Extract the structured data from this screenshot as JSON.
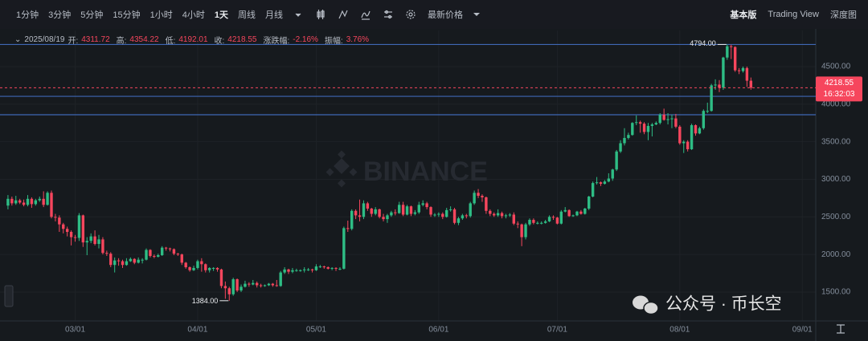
{
  "toolbar": {
    "intervals": [
      "1分钟",
      "3分钟",
      "5分钟",
      "15分钟",
      "1小时",
      "4小时",
      "1天",
      "周线",
      "月线"
    ],
    "active_interval": 6,
    "price_type": "最新价格",
    "views": [
      "基本版",
      "Trading View",
      "深度图"
    ]
  },
  "info": {
    "date": "2025/08/19",
    "labels": [
      "开:",
      "高:",
      "低:",
      "收:",
      "涨跌幅:",
      "振幅:"
    ],
    "change": "-2.16%",
    "amplitude": "3.76%"
  },
  "price_tag": {
    "countdown": "16:32:03"
  },
  "watermark": "BINANCE",
  "overlay_text": "公众号 · 币长空",
  "chart_data": {
    "type": "candlestick",
    "up_color": "#2ebd85",
    "down_color": "#f6465d",
    "grid": true,
    "xlim": [
      "02/11",
      "09/04"
    ],
    "xticks": [
      "03/01",
      "04/01",
      "05/01",
      "06/01",
      "07/01",
      "08/01",
      "09/01"
    ],
    "ylim": [
      1115,
      4980
    ],
    "yticks": [
      {
        "value": 1500,
        "label": "1500.00"
      },
      {
        "value": 2000,
        "label": "2000.00"
      },
      {
        "value": 2500,
        "label": "2500.00"
      },
      {
        "value": 3000,
        "label": "3000.00"
      },
      {
        "value": 3500,
        "label": "3500.00"
      },
      {
        "value": 4000,
        "label": "4000.00"
      },
      {
        "value": 4500,
        "label": "4500.00"
      }
    ],
    "reference_lines": [
      4794,
      4104,
      3859
    ],
    "reference_color": "#3f67b5",
    "high_marker": {
      "value": 4794,
      "label": "4794.00"
    },
    "low_marker": {
      "value": 1384,
      "label": "1384.00"
    },
    "categories": [
      "02/12",
      "02/13",
      "02/14",
      "02/15",
      "02/16",
      "02/17",
      "02/18",
      "02/19",
      "02/20",
      "02/21",
      "02/22",
      "02/23",
      "02/24",
      "02/25",
      "02/26",
      "02/27",
      "02/28",
      "03/01",
      "03/02",
      "03/03",
      "03/04",
      "03/05",
      "03/06",
      "03/07",
      "03/08",
      "03/09",
      "03/10",
      "03/11",
      "03/12",
      "03/13",
      "03/14",
      "03/15",
      "03/16",
      "03/17",
      "03/18",
      "03/19",
      "03/20",
      "03/21",
      "03/22",
      "03/23",
      "03/24",
      "03/25",
      "03/26",
      "03/27",
      "03/28",
      "03/29",
      "03/30",
      "03/31",
      "04/01",
      "04/02",
      "04/03",
      "04/04",
      "04/05",
      "04/06",
      "04/07",
      "04/08",
      "04/09",
      "04/10",
      "04/11",
      "04/12",
      "04/13",
      "04/14",
      "04/15",
      "04/16",
      "04/17",
      "04/18",
      "04/19",
      "04/20",
      "04/21",
      "04/22",
      "04/23",
      "04/24",
      "04/25",
      "04/26",
      "04/27",
      "04/28",
      "04/29",
      "04/30",
      "05/01",
      "05/02",
      "05/03",
      "05/04",
      "05/05",
      "05/06",
      "05/07",
      "05/08",
      "05/09",
      "05/10",
      "05/11",
      "05/12",
      "05/13",
      "05/14",
      "05/15",
      "05/16",
      "05/17",
      "05/18",
      "05/19",
      "05/20",
      "05/21",
      "05/22",
      "05/23",
      "05/24",
      "05/25",
      "05/26",
      "05/27",
      "05/28",
      "05/29",
      "05/30",
      "05/31",
      "06/01",
      "06/02",
      "06/03",
      "06/04",
      "06/05",
      "06/06",
      "06/07",
      "06/08",
      "06/09",
      "06/10",
      "06/11",
      "06/12",
      "06/13",
      "06/14",
      "06/15",
      "06/16",
      "06/17",
      "06/18",
      "06/19",
      "06/20",
      "06/21",
      "06/22",
      "06/23",
      "06/24",
      "06/25",
      "06/26",
      "06/27",
      "06/28",
      "06/29",
      "06/30",
      "07/01",
      "07/02",
      "07/03",
      "07/04",
      "07/05",
      "07/06",
      "07/07",
      "07/08",
      "07/09",
      "07/10",
      "07/11",
      "07/12",
      "07/13",
      "07/14",
      "07/15",
      "07/16",
      "07/17",
      "07/18",
      "07/19",
      "07/20",
      "07/21",
      "07/22",
      "07/23",
      "07/24",
      "07/25",
      "07/26",
      "07/27",
      "07/28",
      "07/29",
      "07/30",
      "07/31",
      "08/01",
      "08/02",
      "08/03",
      "08/04",
      "08/05",
      "08/06",
      "08/07",
      "08/08",
      "08/09",
      "08/10",
      "08/11",
      "08/12",
      "08/13",
      "08/14",
      "08/15",
      "08/16",
      "08/17",
      "08/18",
      "08/19"
    ],
    "open": [
      2650,
      2740,
      2680,
      2720,
      2690,
      2660,
      2740,
      2670,
      2720,
      2740,
      2660,
      2820,
      2500,
      2490,
      2400,
      2340,
      2300,
      2230,
      2220,
      2520,
      2160,
      2180,
      2240,
      2140,
      2200,
      2020,
      2010,
      1860,
      1920,
      1910,
      1860,
      1910,
      1940,
      1890,
      1930,
      1930,
      2060,
      1980,
      1970,
      1990,
      2090,
      2080,
      2070,
      2010,
      2000,
      1890,
      1830,
      1790,
      1820,
      1910,
      1870,
      1790,
      1820,
      1820,
      1800,
      1580,
      1550,
      1470,
      1670,
      1520,
      1570,
      1610,
      1600,
      1620,
      1590,
      1580,
      1590,
      1610,
      1590,
      1580,
      1760,
      1800,
      1770,
      1790,
      1790,
      1790,
      1800,
      1800,
      1790,
      1840,
      1840,
      1830,
      1810,
      1820,
      1810,
      1810,
      2350,
      2340,
      2580,
      2520,
      2500,
      2680,
      2610,
      2540,
      2600,
      2500,
      2470,
      2520,
      2560,
      2550,
      2660,
      2530,
      2640,
      2540,
      2560,
      2660,
      2680,
      2630,
      2530,
      2530,
      2540,
      2500,
      2590,
      2600,
      2420,
      2480,
      2520,
      2510,
      2680,
      2820,
      2780,
      2760,
      2580,
      2540,
      2520,
      2550,
      2510,
      2520,
      2530,
      2410,
      2400,
      2230,
      2400,
      2460,
      2420,
      2420,
      2420,
      2440,
      2500,
      2490,
      2410,
      2570,
      2590,
      2510,
      2520,
      2570,
      2540,
      2610,
      2770,
      2950,
      2960,
      2940,
      2970,
      3010,
      3130,
      3370,
      3480,
      3550,
      3590,
      3750,
      3760,
      3740,
      3630,
      3710,
      3730,
      3750,
      3860,
      3790,
      3800,
      3810,
      3700,
      3480,
      3500,
      3400,
      3720,
      3610,
      3680,
      3910,
      3910,
      4250,
      4260,
      4220,
      4620,
      4770,
      4760,
      4450,
      4440,
      4480,
      4311.72
    ],
    "high": [
      2790,
      2770,
      2780,
      2740,
      2730,
      2790,
      2760,
      2740,
      2770,
      2840,
      2840,
      2850,
      2540,
      2520,
      2420,
      2370,
      2320,
      2260,
      2550,
      2530,
      2230,
      2280,
      2320,
      2260,
      2230,
      2050,
      2030,
      1960,
      1950,
      1930,
      1950,
      1960,
      1950,
      1960,
      1950,
      2080,
      2070,
      2000,
      2010,
      2110,
      2100,
      2090,
      2080,
      2020,
      2010,
      1900,
      1840,
      1850,
      1930,
      1950,
      1880,
      1830,
      1830,
      1830,
      1810,
      1640,
      1570,
      1690,
      1680,
      1600,
      1650,
      1630,
      1660,
      1640,
      1610,
      1600,
      1620,
      1620,
      1660,
      1780,
      1830,
      1810,
      1820,
      1810,
      1800,
      1830,
      1820,
      1810,
      1870,
      1860,
      1850,
      1840,
      1830,
      1830,
      1830,
      2370,
      2450,
      2600,
      2600,
      2730,
      2720,
      2700,
      2620,
      2630,
      2610,
      2540,
      2540,
      2580,
      2600,
      2700,
      2700,
      2660,
      2650,
      2590,
      2700,
      2720,
      2700,
      2640,
      2550,
      2560,
      2560,
      2620,
      2640,
      2620,
      2500,
      2540,
      2540,
      2700,
      2850,
      2870,
      2800,
      2770,
      2600,
      2560,
      2600,
      2570,
      2540,
      2550,
      2560,
      2440,
      2410,
      2420,
      2480,
      2480,
      2440,
      2440,
      2460,
      2520,
      2520,
      2500,
      2590,
      2630,
      2600,
      2530,
      2580,
      2590,
      2620,
      2780,
      2970,
      3030,
      2970,
      2990,
      3080,
      3140,
      3390,
      3520,
      3680,
      3620,
      3760,
      3850,
      3780,
      3760,
      3750,
      3750,
      3770,
      3880,
      3940,
      3880,
      3860,
      3870,
      3720,
      3520,
      3520,
      3740,
      3730,
      3700,
      3930,
      4020,
      4270,
      4330,
      4320,
      4630,
      4794,
      4790,
      4770,
      4480,
      4500,
      4500,
      4354.22
    ],
    "low": [
      2600,
      2650,
      2660,
      2670,
      2640,
      2640,
      2620,
      2650,
      2700,
      2630,
      2650,
      2480,
      2440,
      2300,
      2280,
      2240,
      2120,
      2170,
      2180,
      2100,
      1990,
      2150,
      2120,
      2080,
      2000,
      1980,
      1830,
      1760,
      1850,
      1820,
      1850,
      1900,
      1870,
      1880,
      1880,
      1920,
      1960,
      1950,
      1960,
      1980,
      2050,
      2040,
      1990,
      1980,
      1860,
      1810,
      1770,
      1780,
      1800,
      1770,
      1760,
      1760,
      1780,
      1770,
      1550,
      1410,
      1384,
      1450,
      1500,
      1500,
      1560,
      1570,
      1590,
      1560,
      1560,
      1570,
      1580,
      1570,
      1570,
      1570,
      1740,
      1740,
      1750,
      1770,
      1770,
      1760,
      1780,
      1760,
      1780,
      1820,
      1810,
      1800,
      1790,
      1780,
      1790,
      1800,
      2300,
      2320,
      2470,
      2440,
      2470,
      2580,
      2500,
      2520,
      2480,
      2440,
      2420,
      2500,
      2520,
      2540,
      2510,
      2520,
      2510,
      2520,
      2540,
      2640,
      2600,
      2500,
      2500,
      2500,
      2470,
      2490,
      2570,
      2400,
      2390,
      2460,
      2480,
      2490,
      2660,
      2750,
      2700,
      2540,
      2510,
      2500,
      2500,
      2480,
      2480,
      2500,
      2390,
      2350,
      2110,
      2200,
      2380,
      2400,
      2400,
      2400,
      2410,
      2430,
      2460,
      2400,
      2400,
      2560,
      2500,
      2500,
      2510,
      2530,
      2530,
      2590,
      2760,
      2930,
      2910,
      2930,
      2960,
      2980,
      3110,
      3350,
      3450,
      3530,
      3580,
      3720,
      3620,
      3600,
      3520,
      3570,
      3720,
      3730,
      3780,
      3730,
      3680,
      3680,
      3460,
      3350,
      3370,
      3390,
      3580,
      3600,
      3660,
      3880,
      3900,
      4190,
      4160,
      4190,
      4590,
      4600,
      4430,
      4400,
      4420,
      4230,
      4192.01
    ],
    "close": [
      2740,
      2680,
      2720,
      2690,
      2660,
      2740,
      2670,
      2720,
      2740,
      2660,
      2820,
      2500,
      2490,
      2400,
      2340,
      2300,
      2230,
      2220,
      2520,
      2160,
      2180,
      2240,
      2140,
      2200,
      2020,
      2010,
      1860,
      1920,
      1910,
      1860,
      1910,
      1940,
      1890,
      1930,
      1930,
      2060,
      1980,
      1970,
      1990,
      2090,
      2080,
      2070,
      2010,
      2000,
      1890,
      1830,
      1790,
      1820,
      1910,
      1870,
      1790,
      1820,
      1820,
      1800,
      1580,
      1550,
      1470,
      1670,
      1520,
      1570,
      1610,
      1600,
      1620,
      1590,
      1580,
      1590,
      1610,
      1590,
      1580,
      1760,
      1800,
      1770,
      1790,
      1790,
      1790,
      1800,
      1800,
      1790,
      1840,
      1840,
      1830,
      1810,
      1820,
      1810,
      1810,
      2350,
      2340,
      2580,
      2520,
      2500,
      2680,
      2610,
      2540,
      2600,
      2500,
      2470,
      2520,
      2560,
      2550,
      2660,
      2530,
      2640,
      2540,
      2560,
      2660,
      2680,
      2630,
      2530,
      2530,
      2540,
      2500,
      2590,
      2600,
      2420,
      2480,
      2520,
      2510,
      2680,
      2820,
      2780,
      2760,
      2580,
      2540,
      2520,
      2550,
      2510,
      2520,
      2530,
      2410,
      2400,
      2230,
      2400,
      2460,
      2420,
      2420,
      2420,
      2440,
      2500,
      2490,
      2410,
      2570,
      2590,
      2510,
      2520,
      2570,
      2540,
      2610,
      2770,
      2950,
      2960,
      2940,
      2970,
      3010,
      3130,
      3370,
      3480,
      3550,
      3590,
      3750,
      3760,
      3740,
      3630,
      3710,
      3730,
      3750,
      3860,
      3790,
      3800,
      3810,
      3700,
      3480,
      3500,
      3400,
      3720,
      3610,
      3680,
      3910,
      3910,
      4250,
      4260,
      4220,
      4620,
      4770,
      4760,
      4450,
      4440,
      4480,
      4311.72,
      4218.55
    ]
  }
}
